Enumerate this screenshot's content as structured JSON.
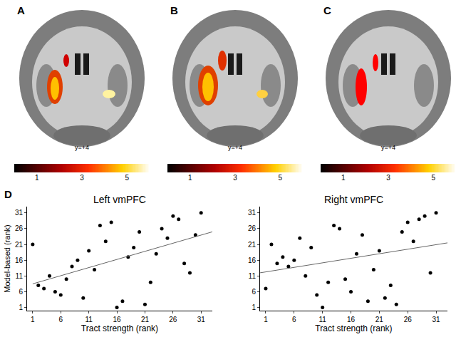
{
  "chart_data": [
    {
      "type": "scatter",
      "title": "Left vmPFC",
      "x_label": "Tract strength (rank)",
      "y_label": "Model-based (rank)",
      "x": [
        1,
        2,
        3,
        4,
        5,
        6,
        7,
        8,
        9,
        10,
        11,
        12,
        13,
        14,
        15,
        16,
        17,
        18,
        19,
        20,
        21,
        22,
        23,
        24,
        25,
        26,
        27,
        28,
        29,
        30,
        31
      ],
      "values": [
        21,
        8,
        7,
        11,
        6,
        5,
        10,
        14,
        16,
        4,
        19,
        13,
        27,
        22,
        28,
        1,
        3,
        17,
        20,
        25,
        2,
        9,
        18,
        26,
        23,
        30,
        29,
        15,
        12,
        24,
        31
      ],
      "color": "#000000",
      "marker": "circle",
      "grid": false,
      "fit": {
        "x": [
          1,
          33
        ],
        "y": [
          8.5,
          25
        ]
      },
      "xlim": [
        0,
        33
      ],
      "ylim": [
        0,
        33
      ],
      "xticks": [
        1,
        6,
        11,
        16,
        21,
        26,
        31
      ],
      "yticks": [
        1,
        6,
        11,
        16,
        21,
        26,
        31
      ]
    },
    {
      "type": "scatter",
      "title": "Right vmPFC",
      "x_label": "Tract strength (rank)",
      "x": [
        1,
        2,
        3,
        4,
        5,
        6,
        7,
        8,
        9,
        10,
        11,
        12,
        13,
        14,
        15,
        16,
        17,
        18,
        19,
        20,
        21,
        22,
        23,
        24,
        25,
        26,
        27,
        28,
        29,
        30,
        31
      ],
      "values": [
        7,
        21,
        15,
        17,
        14,
        16,
        23,
        11,
        20,
        5,
        1,
        9,
        27,
        26,
        10,
        6,
        18,
        24,
        3,
        13,
        19,
        4,
        8,
        2,
        25,
        28,
        22,
        29,
        30,
        12,
        31
      ],
      "color": "#000000",
      "marker": "circle",
      "grid": false,
      "fit": {
        "x": [
          0,
          33
        ],
        "y": [
          12,
          21.5
        ]
      },
      "xlim": [
        0,
        33
      ],
      "ylim": [
        0,
        33
      ],
      "xticks": [
        1,
        6,
        11,
        16,
        21,
        26,
        31
      ],
      "yticks": [
        1,
        6,
        11,
        16,
        21,
        26,
        31
      ]
    }
  ],
  "scatter_label": "D",
  "panels": [
    {
      "label": "A",
      "slice": "y=+4",
      "colorbar": {
        "range": [
          0,
          6
        ],
        "ticks": [
          1,
          3,
          5
        ]
      }
    },
    {
      "label": "B",
      "slice": "y=+4",
      "colorbar": {
        "range": [
          0,
          6
        ],
        "ticks": [
          1,
          3,
          5
        ]
      }
    },
    {
      "label": "C",
      "slice": "y=+4",
      "colorbar": {
        "range": [
          0,
          6
        ],
        "ticks": [
          1,
          3,
          5
        ]
      }
    }
  ]
}
